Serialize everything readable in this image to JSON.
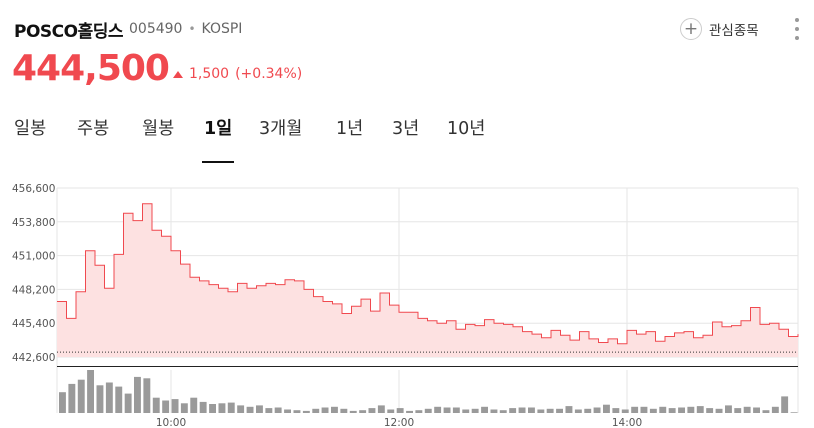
{
  "stock": {
    "name": "POSCO홀딩스",
    "code": "005490",
    "market": "KOSPI",
    "price": "444,500",
    "change": "1,500",
    "change_pct": "(+0.34%)",
    "favorite_label": "관심종목"
  },
  "tabs": [
    {
      "label": "일봉"
    },
    {
      "label": "주봉"
    },
    {
      "label": "월봉"
    },
    {
      "label": "1일"
    },
    {
      "label": "3개월"
    },
    {
      "label": "1년"
    },
    {
      "label": "3년"
    },
    {
      "label": "10년"
    }
  ],
  "active_tab": "1일",
  "colors": {
    "up": "#f0494f",
    "area": "#fde1e1",
    "volume": "#9a9a9a",
    "grid": "#e6e6e6"
  },
  "chart_data": {
    "type": "area",
    "y_ticks": [
      "456,600",
      "453,800",
      "451,000",
      "448,200",
      "445,400",
      "442,600"
    ],
    "ylim": [
      442600,
      456600
    ],
    "x_ticks": [
      "10:00",
      "12:00",
      "14:00"
    ],
    "xlim": [
      "09:00",
      "15:30"
    ],
    "prev_close": 443000,
    "series": [
      {
        "x": [
          "09:00",
          "09:05",
          "09:10",
          "09:15",
          "09:20",
          "09:25",
          "09:30",
          "09:35",
          "09:40",
          "09:45",
          "09:50",
          "09:55",
          "10:00",
          "10:05",
          "10:10",
          "10:15",
          "10:20",
          "10:25",
          "10:30",
          "10:35",
          "10:40",
          "10:45",
          "10:50",
          "10:55",
          "11:00",
          "11:05",
          "11:10",
          "11:15",
          "11:20",
          "11:25",
          "11:30",
          "11:35",
          "11:40",
          "11:45",
          "11:50",
          "11:55",
          "12:00",
          "12:05",
          "12:10",
          "12:15",
          "12:20",
          "12:25",
          "12:30",
          "12:35",
          "12:40",
          "12:45",
          "12:50",
          "12:55",
          "13:00",
          "13:05",
          "13:10",
          "13:15",
          "13:20",
          "13:25",
          "13:30",
          "13:35",
          "13:40",
          "13:45",
          "13:50",
          "13:55",
          "14:00",
          "14:05",
          "14:10",
          "14:15",
          "14:20",
          "14:25",
          "14:30",
          "14:35",
          "14:40",
          "14:45",
          "14:50",
          "14:55",
          "15:00",
          "15:05",
          "15:10",
          "15:15",
          "15:20",
          "15:25",
          "15:30"
        ],
        "values": [
          447200,
          445800,
          448000,
          451400,
          450200,
          448300,
          451100,
          454500,
          453900,
          455300,
          453100,
          452600,
          451400,
          450300,
          449200,
          448900,
          448600,
          448300,
          448000,
          448700,
          448300,
          448500,
          448700,
          448600,
          449000,
          448900,
          448200,
          447600,
          447200,
          447000,
          446200,
          446800,
          447400,
          446400,
          447900,
          446900,
          446300,
          446300,
          445800,
          445600,
          445400,
          445600,
          444900,
          445300,
          445200,
          445700,
          445400,
          445300,
          445100,
          444700,
          444500,
          444200,
          444800,
          444400,
          444000,
          444700,
          444100,
          443800,
          444100,
          443700,
          444800,
          444500,
          444700,
          443900,
          444300,
          444600,
          444700,
          444200,
          444400,
          445500,
          445100,
          445200,
          445600,
          446700,
          445300,
          445400,
          444900,
          444300,
          444500
        ]
      }
    ],
    "volume": [
      30,
      42,
      48,
      62,
      40,
      44,
      38,
      28,
      52,
      50,
      22,
      18,
      20,
      14,
      22,
      16,
      13,
      14,
      15,
      11,
      9,
      11,
      7,
      8,
      5,
      4,
      3,
      6,
      8,
      9,
      6,
      3,
      4,
      7,
      11,
      5,
      7,
      3,
      4,
      6,
      9,
      8,
      8,
      5,
      6,
      9,
      5,
      4,
      7,
      8,
      8,
      5,
      6,
      6,
      10,
      5,
      6,
      8,
      12,
      7,
      5,
      9,
      9,
      6,
      9,
      7,
      8,
      9,
      10,
      7,
      6,
      11,
      7,
      9,
      8,
      4,
      9,
      24,
      1
    ]
  }
}
